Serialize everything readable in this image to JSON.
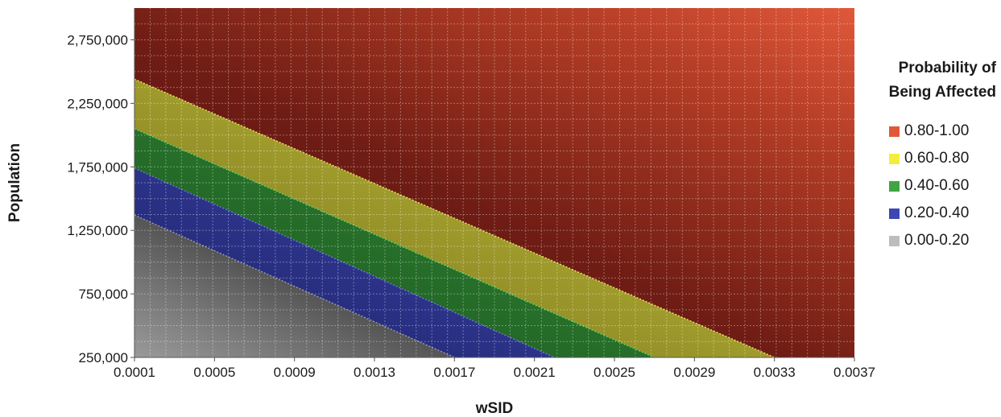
{
  "chart_data": {
    "type": "heatmap",
    "xlabel": "wSID",
    "ylabel": "Population",
    "x_ticks": [
      "0.0001",
      "0.0005",
      "0.0009",
      "0.0013",
      "0.0017",
      "0.0021",
      "0.0025",
      "0.0029",
      "0.0033",
      "0.0037"
    ],
    "y_ticks": [
      "250,000",
      "750,000",
      "1,250,000",
      "1,750,000",
      "2,250,000",
      "2,750,000"
    ],
    "xlim": [
      0.0001,
      0.0037
    ],
    "ylim": [
      250000,
      3000000
    ],
    "legend": {
      "title_lines": [
        "Probability of",
        "Being Affected"
      ],
      "position": "right",
      "items": [
        {
          "label": "0.80-1.00",
          "color": "#e0583a"
        },
        {
          "label": "0.60-0.80",
          "color": "#f2ee3c"
        },
        {
          "label": "0.40-0.60",
          "color": "#3fa544"
        },
        {
          "label": "0.20-0.40",
          "color": "#3b48b3"
        },
        {
          "label": "0.00-0.20",
          "color": "#bdbdbd"
        }
      ]
    },
    "band_boundaries": [
      {
        "between": [
          "0.00-0.20",
          "0.20-0.40"
        ],
        "points": [
          [
            0.0001,
            1370000
          ],
          [
            0.0017,
            250000
          ]
        ]
      },
      {
        "between": [
          "0.20-0.40",
          "0.40-0.60"
        ],
        "points": [
          [
            0.0001,
            1740000
          ],
          [
            0.0022,
            250000
          ]
        ]
      },
      {
        "between": [
          "0.40-0.60",
          "0.60-0.80"
        ],
        "points": [
          [
            0.0001,
            2050000
          ],
          [
            0.0027,
            250000
          ]
        ]
      },
      {
        "between": [
          "0.60-0.80",
          "0.80-1.00"
        ],
        "points": [
          [
            0.0001,
            2440000
          ],
          [
            0.0033,
            250000
          ]
        ]
      }
    ],
    "grid": true
  }
}
